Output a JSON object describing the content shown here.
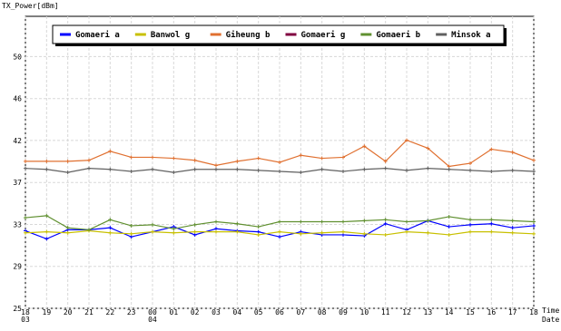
{
  "chart_data": {
    "type": "line",
    "y_label": "TX_Power[dBm]",
    "x_label": "Time",
    "x_label2": "Date",
    "categories": [
      "18",
      "19",
      "20",
      "21",
      "22",
      "23",
      "00",
      "01",
      "02",
      "03",
      "04",
      "05",
      "06",
      "07",
      "08",
      "09",
      "10",
      "11",
      "12",
      "13",
      "14",
      "15",
      "16",
      "17",
      "18"
    ],
    "dates": [
      "03",
      null,
      null,
      null,
      null,
      null,
      "04",
      null,
      null,
      null,
      null,
      null,
      null,
      null,
      null,
      null,
      null,
      null,
      null,
      null,
      null,
      null,
      null,
      null,
      null
    ],
    "series": [
      {
        "name": "Gomaeri a",
        "color": "#0000ff",
        "values": [
          32.7,
          31.9,
          32.8,
          32.8,
          33.0,
          32.1,
          32.6,
          33.1,
          32.3,
          32.9,
          32.7,
          32.6,
          32.1,
          32.6,
          32.3,
          32.3,
          32.2,
          33.4,
          32.8,
          33.7,
          33.1,
          33.3,
          33.4,
          33.0,
          33.2
        ]
      },
      {
        "name": "Banwol g",
        "color": "#c8c000",
        "values": [
          32.5,
          32.6,
          32.5,
          32.7,
          32.5,
          32.4,
          32.6,
          32.5,
          32.6,
          32.6,
          32.6,
          32.3,
          32.6,
          32.4,
          32.5,
          32.6,
          32.4,
          32.3,
          32.6,
          32.5,
          32.3,
          32.6,
          32.6,
          32.5,
          32.4
        ]
      },
      {
        "name": "Giheung b",
        "color": "#e07030",
        "values": [
          39.6,
          39.6,
          39.6,
          39.7,
          40.6,
          40.0,
          40.0,
          39.9,
          39.7,
          39.2,
          39.6,
          39.9,
          39.5,
          40.2,
          39.9,
          40.0,
          41.1,
          39.6,
          41.7,
          40.9,
          39.1,
          39.4,
          40.8,
          40.5,
          39.7
        ]
      },
      {
        "name": "Gomaeri g",
        "color": "#800040",
        "values": [
          null,
          null,
          null,
          null,
          null,
          null,
          null,
          null,
          null,
          null,
          null,
          null,
          null,
          null,
          null,
          null,
          null,
          null,
          null,
          null,
          null,
          null,
          null,
          null,
          null
        ]
      },
      {
        "name": "Gomaeri b",
        "color": "#609030",
        "values": [
          34.0,
          34.2,
          33.0,
          32.8,
          33.8,
          33.2,
          33.3,
          32.9,
          33.3,
          33.6,
          33.4,
          33.1,
          33.6,
          33.6,
          33.6,
          33.6,
          33.7,
          33.8,
          33.6,
          33.7,
          34.1,
          33.8,
          33.8,
          33.7,
          33.6
        ]
      },
      {
        "name": "Minsok a",
        "color": "#606060",
        "values": [
          38.9,
          38.8,
          38.5,
          38.9,
          38.8,
          38.6,
          38.8,
          38.5,
          38.8,
          38.8,
          38.8,
          38.7,
          38.6,
          38.5,
          38.8,
          38.6,
          38.8,
          38.9,
          38.7,
          38.9,
          38.8,
          38.7,
          38.6,
          38.7,
          38.6
        ]
      }
    ],
    "ylim": [
      25,
      54
    ],
    "yticks": [
      25,
      {
        "value": 29.17,
        "label": "29"
      },
      {
        "value": 33.33,
        "label": "33"
      },
      {
        "value": 37.5,
        "label": "37"
      },
      {
        "value": 41.67,
        "label": "42"
      },
      {
        "value": 45.83,
        "label": "46"
      },
      50
    ],
    "grid": true
  }
}
